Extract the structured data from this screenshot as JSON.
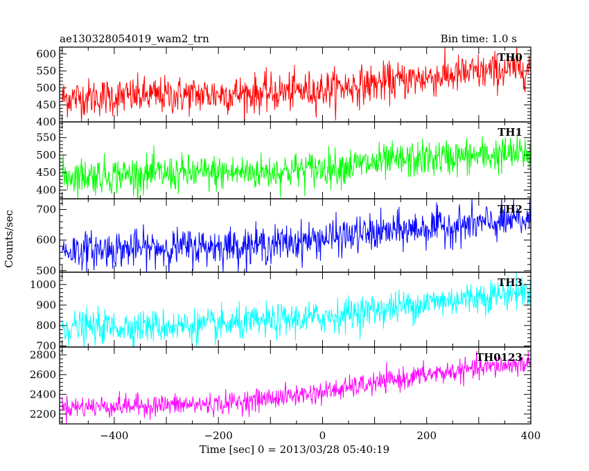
{
  "title_left": "ae130328054019_wam2_trn",
  "title_right": "Bin time: 1.0 s",
  "xlabel": "Time [sec] 0 = 2013/03/28 05:40:19",
  "ylabel": "Counts/sec",
  "chart_data": {
    "type": "line",
    "x_range": [
      -505,
      400
    ],
    "x_ticks": [
      -400,
      -200,
      0,
      200,
      400
    ],
    "x_tick_labels": [
      "−400",
      "−200",
      "0",
      "200",
      "400"
    ],
    "bin_time_s": 1.0,
    "panels": [
      {
        "name": "TH0",
        "color": "#ff0000",
        "ylim": [
          400,
          620
        ],
        "y_ticks": [
          400,
          450,
          500,
          550,
          600
        ],
        "y_tick_labels": [
          "400",
          "450",
          "500",
          "550",
          "600"
        ],
        "trend": {
          "x": [
            -505,
            -100,
            0,
            200,
            400
          ],
          "y": [
            470,
            485,
            495,
            530,
            560
          ]
        },
        "noise_amplitude": 28
      },
      {
        "name": "TH1",
        "color": "#00ff00",
        "ylim": [
          375,
          595
        ],
        "y_ticks": [
          400,
          450,
          500,
          550
        ],
        "y_tick_labels": [
          "400",
          "450",
          "500",
          "550"
        ],
        "trend": {
          "x": [
            -505,
            -100,
            0,
            200,
            400
          ],
          "y": [
            440,
            452,
            462,
            490,
            505
          ]
        },
        "noise_amplitude": 26
      },
      {
        "name": "TH2",
        "color": "#0000ff",
        "ylim": [
          495,
          735
        ],
        "y_ticks": [
          500,
          600,
          700
        ],
        "y_tick_labels": [
          "500",
          "600",
          "700"
        ],
        "trend": {
          "x": [
            -505,
            -100,
            0,
            200,
            400
          ],
          "y": [
            565,
            585,
            605,
            640,
            665
          ]
        },
        "noise_amplitude": 30
      },
      {
        "name": "TH3",
        "color": "#00ffff",
        "ylim": [
          695,
          1060
        ],
        "y_ticks": [
          700,
          800,
          900,
          1000
        ],
        "y_tick_labels": [
          "700",
          "800",
          "900",
          "1000"
        ],
        "trend": {
          "x": [
            -505,
            -200,
            0,
            200,
            400
          ],
          "y": [
            790,
            800,
            840,
            910,
            970
          ]
        },
        "noise_amplitude": 40
      },
      {
        "name": "TH0123",
        "color": "#ff00ff",
        "ylim": [
          2100,
          2880
        ],
        "y_ticks": [
          2200,
          2400,
          2600,
          2800
        ],
        "y_tick_labels": [
          "2200",
          "2400",
          "2600",
          "2800"
        ],
        "trend": {
          "x": [
            -505,
            -200,
            0,
            200,
            400
          ],
          "y": [
            2270,
            2300,
            2420,
            2600,
            2720
          ]
        },
        "noise_amplitude": 55
      }
    ]
  }
}
